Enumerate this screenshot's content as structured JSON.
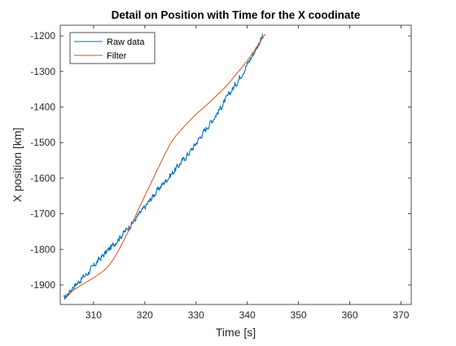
{
  "chart_data": {
    "type": "line",
    "title": "Detail on Position with Time for the X coodinate",
    "xlabel": "Time [s]",
    "ylabel": "X position [km]",
    "xlim": [
      303.5,
      372
    ],
    "ylim": [
      -1955,
      -1170
    ],
    "xticks": [
      310,
      320,
      330,
      340,
      350,
      360,
      370
    ],
    "yticks": [
      -1900,
      -1800,
      -1700,
      -1600,
      -1500,
      -1400,
      -1300,
      -1200
    ],
    "grid": false,
    "legend": "top-left",
    "series": [
      {
        "name": "Raw data",
        "color": "#0072BD",
        "noisy": true,
        "x": [
          304.2,
          305,
          306,
          307,
          308,
          309,
          310,
          311,
          312,
          313,
          314,
          315,
          316,
          317,
          318,
          319,
          320,
          321,
          322,
          323,
          324,
          325,
          326,
          327,
          328,
          329,
          330,
          331,
          332,
          333,
          334,
          335,
          336,
          337,
          338,
          339,
          340,
          341,
          342,
          343
        ],
        "y": [
          -1940,
          -1925,
          -1905,
          -1893,
          -1878,
          -1865,
          -1848,
          -1830,
          -1815,
          -1800,
          -1785,
          -1768,
          -1752,
          -1735,
          -1718,
          -1700,
          -1682,
          -1662,
          -1643,
          -1625,
          -1608,
          -1592,
          -1575,
          -1557,
          -1540,
          -1522,
          -1502,
          -1480,
          -1460,
          -1440,
          -1420,
          -1398,
          -1375,
          -1352,
          -1330,
          -1305,
          -1280,
          -1255,
          -1228,
          -1200
        ]
      },
      {
        "name": "Filter",
        "color": "#D95319",
        "noisy": false,
        "x": [
          304.5,
          306,
          308,
          310,
          312,
          313,
          314,
          315,
          316,
          317,
          318,
          319,
          320,
          321,
          322,
          323,
          324,
          325,
          326,
          328,
          330,
          332,
          334,
          336,
          338,
          340,
          342,
          343.5
        ],
        "y": [
          -1938,
          -1915,
          -1897,
          -1880,
          -1860,
          -1845,
          -1825,
          -1800,
          -1772,
          -1743,
          -1712,
          -1680,
          -1650,
          -1620,
          -1590,
          -1560,
          -1530,
          -1503,
          -1482,
          -1450,
          -1420,
          -1395,
          -1368,
          -1340,
          -1305,
          -1270,
          -1228,
          -1195
        ]
      }
    ]
  }
}
